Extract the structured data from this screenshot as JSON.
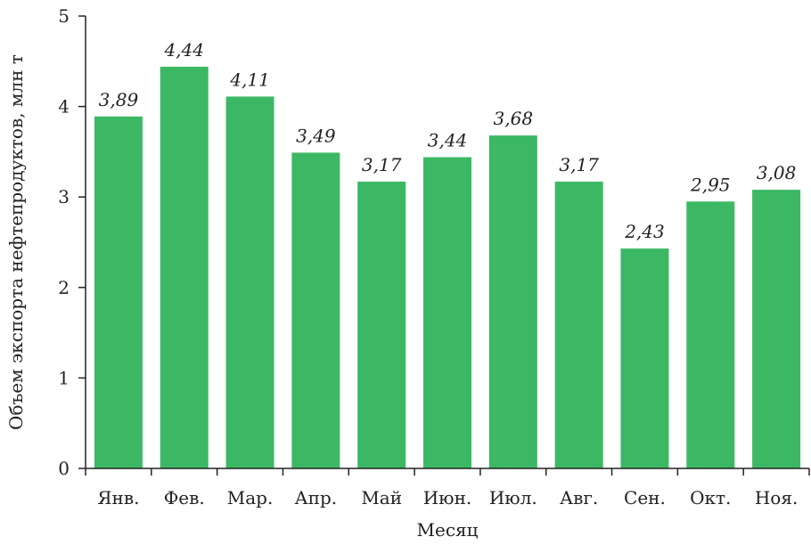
{
  "chart_data": {
    "type": "bar",
    "categories": [
      "Янв.",
      "Фев.",
      "Мар.",
      "Апр.",
      "Май",
      "Июн.",
      "Июл.",
      "Авг.",
      "Сен.",
      "Окт.",
      "Ноя."
    ],
    "values": [
      3.89,
      4.44,
      4.11,
      3.49,
      3.17,
      3.44,
      3.68,
      3.17,
      2.43,
      2.95,
      3.08
    ],
    "value_labels": [
      "3,89",
      "4,44",
      "4,11",
      "3,49",
      "3,17",
      "3,44",
      "3,68",
      "3,17",
      "2,43",
      "2,95",
      "3,08"
    ],
    "title": "",
    "xlabel": "Месяц",
    "ylabel": "Объем экспорта нефтепродуктов, млн т",
    "ylim": [
      0,
      5
    ],
    "yticks": [
      0,
      1,
      2,
      3,
      4,
      5
    ],
    "grid": false,
    "legend": "none",
    "bar_color": "#3cb865",
    "axis_color": "#222222"
  }
}
